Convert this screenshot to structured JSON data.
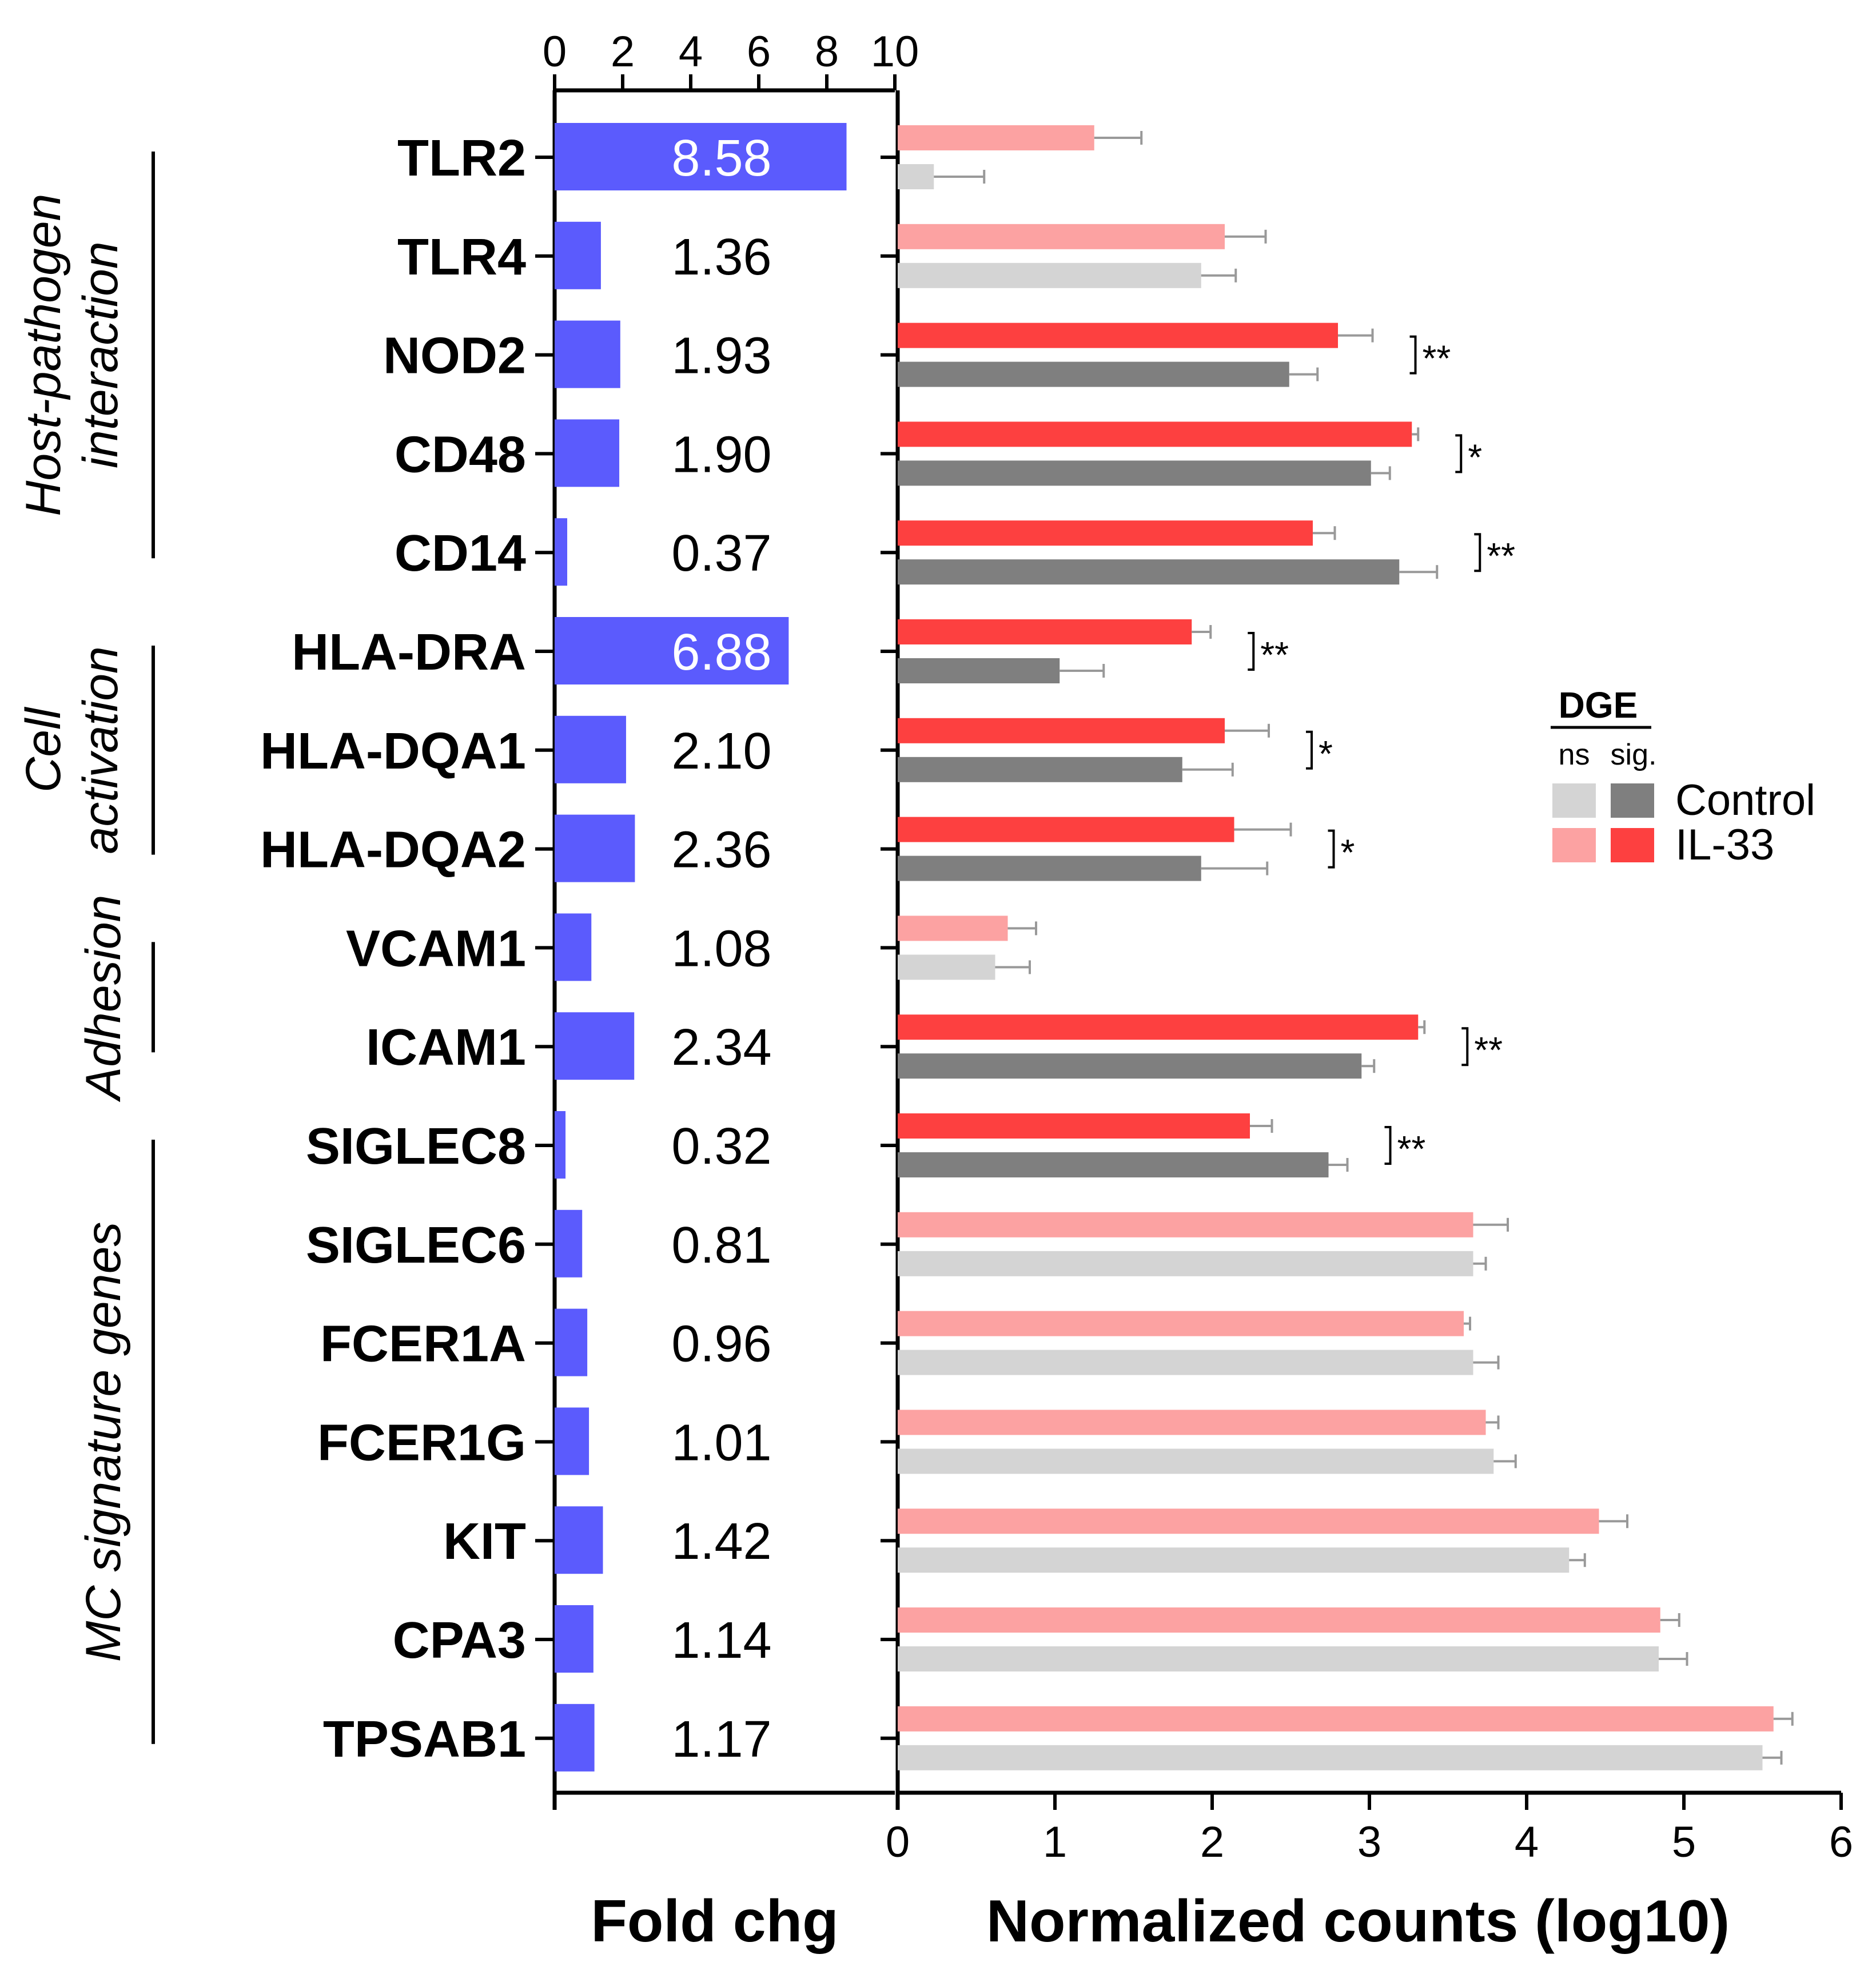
{
  "chart_data": [
    {
      "type": "bar",
      "orientation": "horizontal",
      "xlabel": "Fold chg",
      "xlim": [
        0,
        10
      ],
      "xticks": [
        0,
        2,
        4,
        6,
        8,
        10
      ],
      "categories": [
        "TLR2",
        "TLR4",
        "NOD2",
        "CD48",
        "CD14",
        "HLA-DRA",
        "HLA-DQA1",
        "HLA-DQA2",
        "VCAM1",
        "ICAM1",
        "SIGLEC8",
        "SIGLEC6",
        "FCER1A",
        "FCER1G",
        "KIT",
        "CPA3",
        "TPSAB1"
      ],
      "values": [
        8.58,
        1.36,
        1.93,
        1.9,
        0.37,
        6.88,
        2.1,
        2.36,
        1.08,
        2.34,
        0.32,
        0.81,
        0.96,
        1.01,
        1.42,
        1.14,
        1.17
      ],
      "value_labels": [
        "8.58",
        "1.36",
        "1.93",
        "1.90",
        "0.37",
        "6.88",
        "2.10",
        "2.36",
        "1.08",
        "2.34",
        "0.32",
        "0.81",
        "0.96",
        "1.01",
        "1.42",
        "1.14",
        "1.17"
      ],
      "color": "#5b5bfd"
    },
    {
      "type": "bar",
      "orientation": "horizontal",
      "xlabel": "Normalized counts (log10)",
      "xlim": [
        0,
        6
      ],
      "xticks": [
        0,
        1,
        2,
        3,
        4,
        5,
        6
      ],
      "categories": [
        "TLR2",
        "TLR4",
        "NOD2",
        "CD48",
        "CD14",
        "HLA-DRA",
        "HLA-DQA1",
        "HLA-DQA2",
        "VCAM1",
        "ICAM1",
        "SIGLEC8",
        "SIGLEC6",
        "FCER1A",
        "FCER1G",
        "KIT",
        "CPA3",
        "TPSAB1"
      ],
      "series": [
        {
          "name": "IL-33",
          "values": [
            1.25,
            2.08,
            2.8,
            3.27,
            2.64,
            1.87,
            2.08,
            2.14,
            0.7,
            3.31,
            2.24,
            3.66,
            3.6,
            3.74,
            4.46,
            4.85,
            5.57
          ],
          "errors": [
            0.3,
            0.26,
            0.22,
            0.04,
            0.14,
            0.12,
            0.28,
            0.36,
            0.18,
            0.04,
            0.14,
            0.22,
            0.04,
            0.08,
            0.18,
            0.12,
            0.12
          ]
        },
        {
          "name": "Control",
          "values": [
            0.23,
            1.93,
            2.49,
            3.01,
            3.19,
            1.03,
            1.81,
            1.93,
            0.62,
            2.95,
            2.74,
            3.66,
            3.66,
            3.79,
            4.27,
            4.84,
            5.5
          ],
          "errors": [
            0.32,
            0.22,
            0.18,
            0.12,
            0.24,
            0.28,
            0.32,
            0.42,
            0.22,
            0.08,
            0.12,
            0.08,
            0.16,
            0.14,
            0.1,
            0.18,
            0.12
          ]
        }
      ],
      "significant": [
        false,
        false,
        true,
        true,
        true,
        true,
        true,
        true,
        false,
        true,
        true,
        false,
        false,
        false,
        false,
        false,
        false
      ],
      "significance_labels": [
        "",
        "",
        "**",
        "*",
        "**",
        "**",
        "*",
        "*",
        "",
        "**",
        "**",
        "",
        "",
        "",
        "",
        "",
        ""
      ],
      "colors": {
        "control_ns": "#d4d4d4",
        "control_sig": "#7f7f7f",
        "il33_ns": "#fca2a2",
        "il33_sig": "#fd4040"
      },
      "legend": {
        "title": "DGE",
        "columns": [
          "ns",
          "sig."
        ],
        "rows": [
          "Control",
          "IL-33"
        ],
        "position": "right"
      }
    }
  ],
  "groups": [
    {
      "label": "Host-pathogen interaction",
      "lines": [
        "Host-pathogen",
        "interaction"
      ],
      "first": 0,
      "last": 4
    },
    {
      "label": "Cell activation",
      "lines": [
        "Cell",
        "activation"
      ],
      "first": 5,
      "last": 7
    },
    {
      "label": "Adhesion",
      "lines": [
        "Adhesion"
      ],
      "first": 8,
      "last": 9
    },
    {
      "label": "MC signature genes",
      "lines": [
        "MC signature genes"
      ],
      "first": 10,
      "last": 16
    }
  ]
}
